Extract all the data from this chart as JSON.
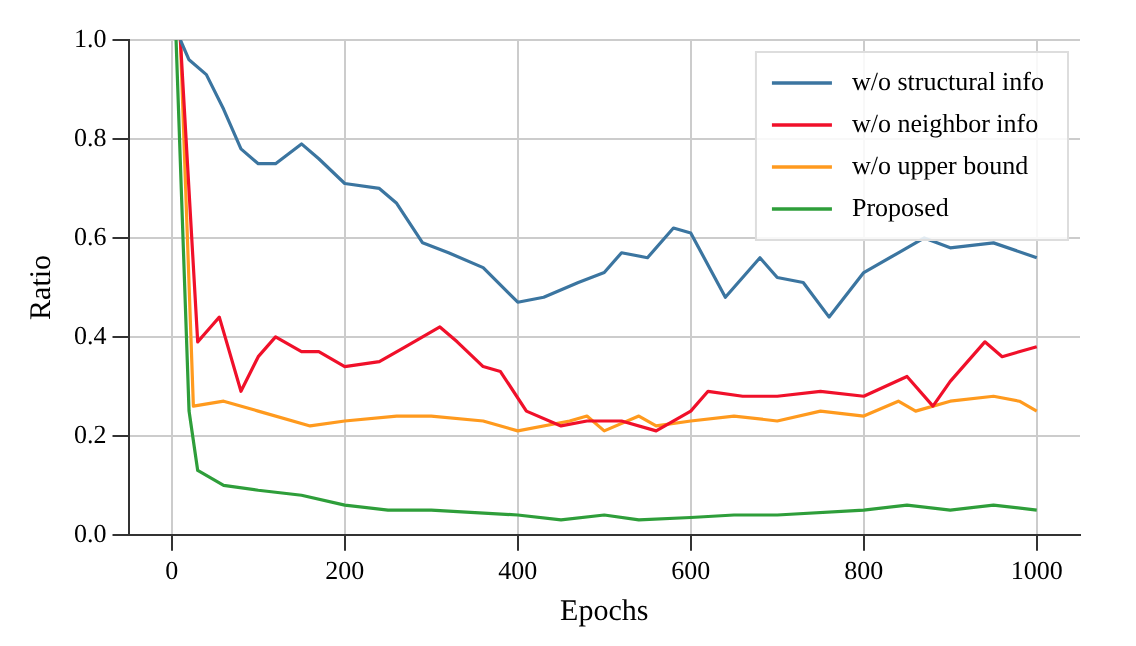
{
  "chart_data": {
    "type": "line",
    "xlabel": "Epochs",
    "ylabel": "Ratio",
    "xlim": [
      -50,
      1050
    ],
    "xticks": [
      0,
      200,
      400,
      600,
      800,
      1000
    ],
    "ylim": [
      0,
      1
    ],
    "yticks": [
      {
        "value": 0,
        "label": "0.0"
      },
      {
        "value": 0.2,
        "label": "0.2"
      },
      {
        "value": 0.4,
        "label": "0.4"
      },
      {
        "value": 0.6,
        "label": "0.6"
      },
      {
        "value": 0.8,
        "label": "0.8"
      },
      {
        "value": 1,
        "label": "1.0"
      }
    ],
    "grid": true,
    "legend": "top right",
    "marker": "none",
    "line_style": "solid",
    "series": [
      {
        "name": "w/o structural info",
        "color": "#3b75a0",
        "x": [
          10,
          20,
          40,
          60,
          80,
          100,
          120,
          150,
          170,
          200,
          240,
          260,
          290,
          320,
          360,
          400,
          430,
          470,
          500,
          520,
          550,
          580,
          600,
          640,
          680,
          700,
          730,
          760,
          800,
          840,
          870,
          900,
          950,
          1000
        ],
        "values": [
          1.0,
          0.96,
          0.93,
          0.86,
          0.78,
          0.75,
          0.75,
          0.79,
          0.76,
          0.71,
          0.7,
          0.67,
          0.59,
          0.57,
          0.54,
          0.47,
          0.48,
          0.51,
          0.53,
          0.57,
          0.56,
          0.62,
          0.61,
          0.48,
          0.56,
          0.52,
          0.51,
          0.44,
          0.53,
          0.57,
          0.6,
          0.58,
          0.59,
          0.56
        ]
      },
      {
        "name": "w/o neighbor info",
        "color": "#f0102a",
        "x": [
          10,
          30,
          45,
          55,
          80,
          100,
          120,
          150,
          170,
          200,
          240,
          270,
          310,
          330,
          360,
          380,
          410,
          450,
          480,
          520,
          560,
          600,
          620,
          660,
          700,
          750,
          800,
          850,
          880,
          900,
          940,
          960,
          1000
        ],
        "values": [
          1.0,
          0.39,
          0.42,
          0.44,
          0.29,
          0.36,
          0.4,
          0.37,
          0.37,
          0.34,
          0.35,
          0.38,
          0.42,
          0.39,
          0.34,
          0.33,
          0.25,
          0.22,
          0.23,
          0.23,
          0.21,
          0.25,
          0.29,
          0.28,
          0.28,
          0.29,
          0.28,
          0.32,
          0.26,
          0.31,
          0.39,
          0.36,
          0.38
        ]
      },
      {
        "name": "w/o upper bound",
        "color": "#ff9a1e",
        "x": [
          10,
          25,
          60,
          100,
          160,
          200,
          260,
          300,
          360,
          400,
          460,
          480,
          500,
          540,
          560,
          600,
          650,
          700,
          750,
          800,
          840,
          860,
          900,
          950,
          980,
          1000
        ],
        "values": [
          1.0,
          0.26,
          0.27,
          0.25,
          0.22,
          0.23,
          0.24,
          0.24,
          0.23,
          0.21,
          0.23,
          0.24,
          0.21,
          0.24,
          0.22,
          0.23,
          0.24,
          0.23,
          0.25,
          0.24,
          0.27,
          0.25,
          0.27,
          0.28,
          0.27,
          0.25
        ]
      },
      {
        "name": "Proposed",
        "color": "#2e9e3a",
        "x": [
          5,
          20,
          30,
          60,
          100,
          150,
          200,
          250,
          300,
          400,
          450,
          500,
          540,
          600,
          650,
          700,
          800,
          850,
          900,
          950,
          1000
        ],
        "values": [
          1.0,
          0.25,
          0.13,
          0.1,
          0.09,
          0.08,
          0.06,
          0.05,
          0.05,
          0.04,
          0.03,
          0.04,
          0.03,
          0.035,
          0.04,
          0.04,
          0.05,
          0.06,
          0.05,
          0.06,
          0.05
        ]
      }
    ]
  }
}
